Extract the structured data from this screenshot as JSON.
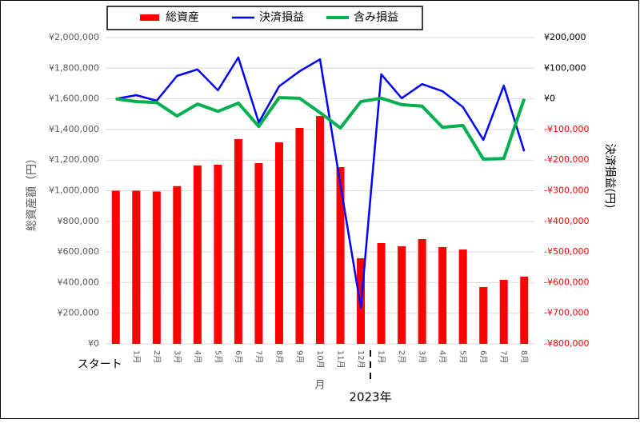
{
  "chart_data": {
    "type": "bar_line",
    "categories": [
      "スタート",
      "1月",
      "2月",
      "3月",
      "4月",
      "5月",
      "6月",
      "7月",
      "8月",
      "9月",
      "10月",
      "11月",
      "12月",
      "1月",
      "2月",
      "3月",
      "4月",
      "5月",
      "6月",
      "7月",
      "8月"
    ],
    "xlabel": "月",
    "x_group_label": "2023年",
    "ylabel": "総資産額（円）",
    "y2label": "決済損益(円)",
    "series": [
      {
        "name": "総資産",
        "color": "#ff0000",
        "kind": "bar",
        "values": [
          1000000,
          1000000,
          995000,
          1030000,
          1165000,
          1170000,
          1337000,
          1180000,
          1316000,
          1410000,
          1488000,
          1154000,
          559000,
          658000,
          637000,
          684000,
          632000,
          616000,
          371000,
          418000,
          439000
        ]
      },
      {
        "name": "決済損益",
        "color": "#0000ff",
        "kind": "line",
        "axis": "y2",
        "values": [
          0,
          12000,
          -6000,
          75000,
          96000,
          28000,
          135000,
          -77000,
          41000,
          90000,
          129000,
          -280000,
          -682000,
          80000,
          2000,
          48000,
          25000,
          -27000,
          -134000,
          43000,
          -171000
        ]
      },
      {
        "name": "含み損益",
        "color": "#00b050",
        "kind": "line",
        "axis": "y2",
        "values": [
          0,
          -9000,
          -12000,
          -56000,
          -17000,
          -41000,
          -14000,
          -90000,
          4000,
          2000,
          -45000,
          -95000,
          -9000,
          2000,
          -19000,
          -24000,
          -93000,
          -87000,
          -197000,
          -195000,
          0
        ]
      }
    ],
    "ylim": [
      0,
      2000000
    ],
    "yticks": [
      {
        "value": 0,
        "label": "¥0"
      },
      {
        "value": 200000,
        "label": "¥200,000"
      },
      {
        "value": 400000,
        "label": "¥400,000"
      },
      {
        "value": 600000,
        "label": "¥600,000"
      },
      {
        "value": 800000,
        "label": "¥800,000"
      },
      {
        "value": 1000000,
        "label": "¥1,000,000"
      },
      {
        "value": 1200000,
        "label": "¥1,200,000"
      },
      {
        "value": 1400000,
        "label": "¥1,400,000"
      },
      {
        "value": 1600000,
        "label": "¥1,600,000"
      },
      {
        "value": 1800000,
        "label": "¥1,800,000"
      },
      {
        "value": 2000000,
        "label": "¥2,000,000"
      }
    ],
    "y2lim": [
      -800000,
      200000
    ],
    "y2ticks": [
      {
        "value": -800000,
        "label": "-¥800,000"
      },
      {
        "value": -700000,
        "label": "-¥700,000"
      },
      {
        "value": -600000,
        "label": "-¥600,000"
      },
      {
        "value": -500000,
        "label": "-¥500,000"
      },
      {
        "value": -400000,
        "label": "-¥400,000"
      },
      {
        "value": -300000,
        "label": "-¥300,000"
      },
      {
        "value": -200000,
        "label": "-¥200,000"
      },
      {
        "value": -100000,
        "label": "-¥100,000"
      },
      {
        "value": 0,
        "label": "¥0"
      },
      {
        "value": 100000,
        "label": "¥100,000"
      },
      {
        "value": 200000,
        "label": "¥200,000"
      }
    ],
    "y2_negative_color": "#ff0000",
    "grid": true,
    "legend": "top"
  }
}
